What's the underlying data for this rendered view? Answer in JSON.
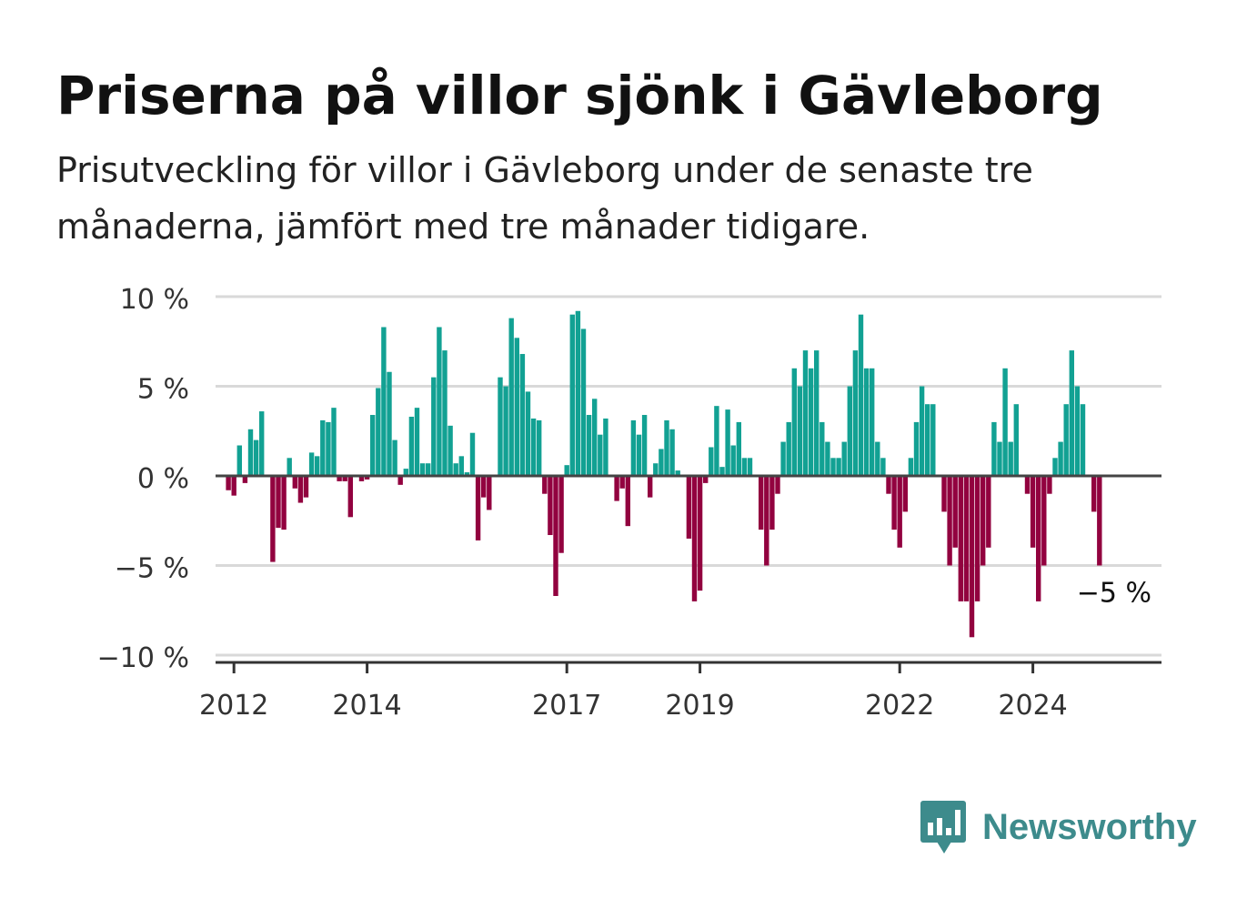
{
  "title": "Priserna på villor sjönk i Gävleborg",
  "subtitle": "Prisutveckling för villor i Gävleborg under de senaste tre månaderna, jämfört med tre månader tidigare.",
  "brand": {
    "name": "Newsworthy",
    "icon": "bar-chart-speech-bubble-icon",
    "color": "#3d8b8c"
  },
  "chart_data": {
    "type": "bar",
    "x_start": "2011-12",
    "x_step": "month",
    "values": [
      -0.8,
      -1.1,
      1.7,
      -0.4,
      2.6,
      2.0,
      3.6,
      0,
      -4.8,
      -2.9,
      -3.0,
      1.0,
      -0.7,
      -1.5,
      -1.2,
      1.3,
      1.1,
      3.1,
      3.0,
      3.8,
      -0.3,
      -0.3,
      -2.3,
      0,
      -0.3,
      -0.2,
      3.4,
      4.9,
      8.3,
      5.8,
      2.0,
      -0.5,
      0.4,
      3.3,
      3.8,
      0.7,
      0.7,
      5.5,
      8.3,
      7.0,
      2.8,
      0.7,
      1.1,
      0.2,
      2.4,
      -3.6,
      -1.2,
      -1.9,
      0,
      5.5,
      5.0,
      8.8,
      7.7,
      6.8,
      4.7,
      3.2,
      3.1,
      -1.0,
      -3.3,
      -6.7,
      -4.3,
      0.6,
      9.0,
      9.2,
      8.2,
      3.4,
      4.3,
      2.3,
      3.2,
      0,
      -1.4,
      -0.7,
      -2.8,
      3.1,
      2.3,
      3.4,
      -1.2,
      0.7,
      1.5,
      3.1,
      2.6,
      0.3,
      0,
      -3.5,
      -7.0,
      -6.4,
      -0.4,
      1.6,
      3.9,
      0.5,
      3.7,
      1.7,
      3.0,
      1.0,
      1.0,
      0,
      -3.0,
      -5.0,
      -3.0,
      -1.0,
      1.9,
      3.0,
      6.0,
      5.0,
      7.0,
      6.0,
      7.0,
      3.0,
      1.9,
      1.0,
      1.0,
      1.9,
      5.0,
      7.0,
      9.0,
      6.0,
      6.0,
      1.9,
      1.0,
      -1.0,
      -3.0,
      -4.0,
      -2.0,
      1.0,
      3.0,
      5.0,
      4.0,
      4.0,
      0,
      -2.0,
      -5.0,
      -4.0,
      -7.0,
      -7.0,
      -9.0,
      -7.0,
      -5.0,
      -4.0,
      3.0,
      1.9,
      6.0,
      1.9,
      4.0,
      0,
      -1.0,
      -4.0,
      -7.0,
      -5.0,
      -1.0,
      1.0,
      1.9,
      4.0,
      7.0,
      5.0,
      4.0,
      0,
      -2.0,
      -5.0
    ],
    "x_ticks": [
      "2012",
      "2014",
      "2017",
      "2019",
      "2022",
      "2024"
    ],
    "x_tick_dates": [
      "2012-01",
      "2014-01",
      "2017-01",
      "2019-01",
      "2022-01",
      "2024-01"
    ],
    "y_ticks": [
      10,
      5,
      0,
      -5,
      -10
    ],
    "y_tick_labels": [
      "10 %",
      "5 %",
      "0 %",
      "−5 %",
      "−10 %"
    ],
    "ylim": [
      -10,
      10
    ],
    "last_value_label": "−5 %",
    "positive_color": "#12a193",
    "negative_color": "#92023f",
    "grid": true,
    "legend": "none"
  }
}
